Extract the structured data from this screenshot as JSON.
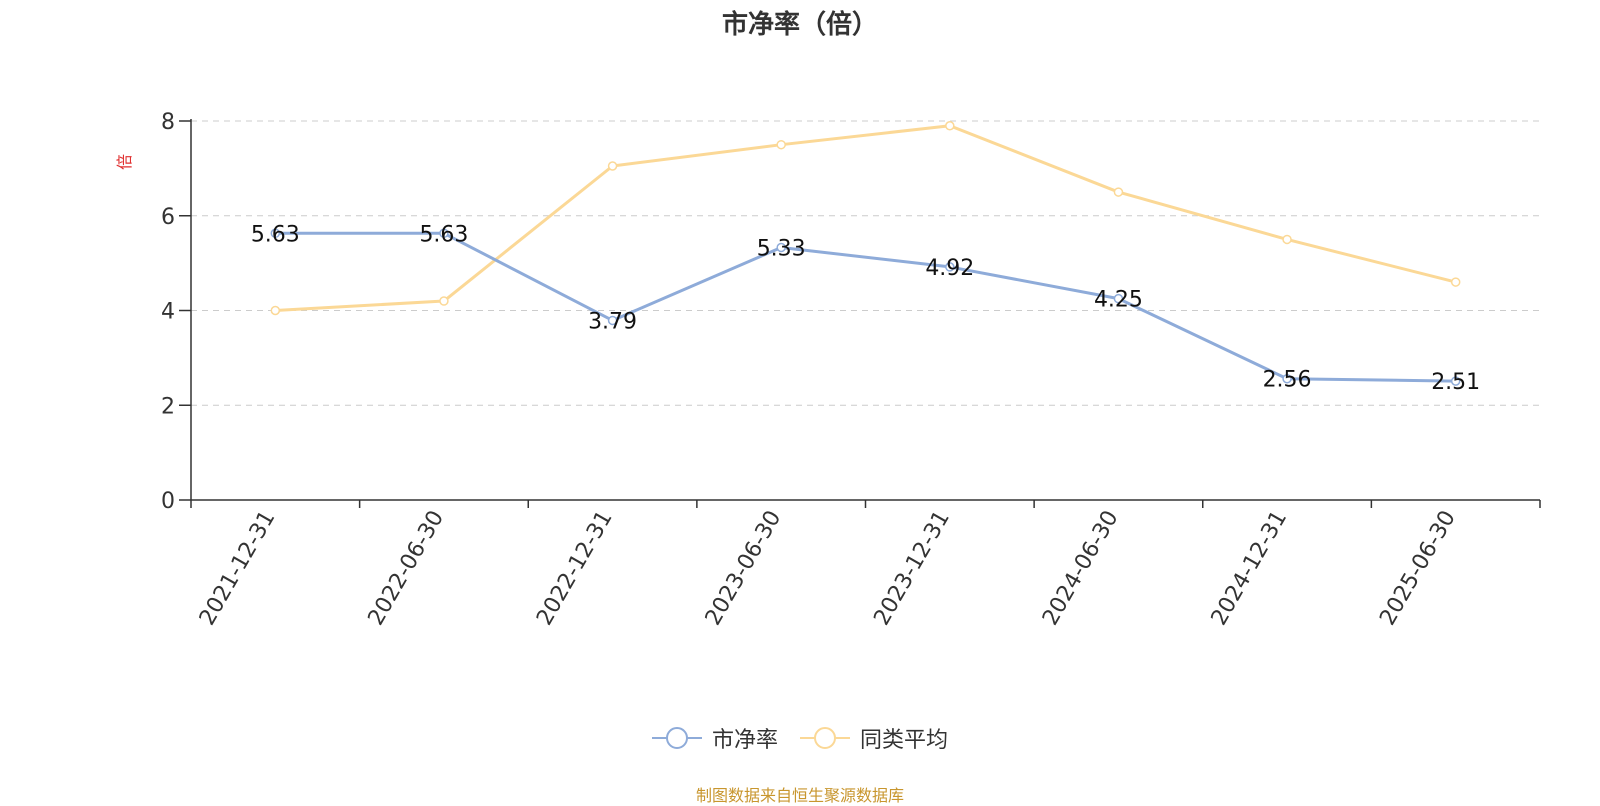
{
  "title": "市净率（倍）",
  "source_note": "制图数据来自恒生聚源数据库",
  "colors": {
    "series1": "#8eabd9",
    "series2": "#fbd896",
    "axis": "#333333",
    "grid": "#cccccc",
    "unit": "#e03030",
    "source": "#c8962e"
  },
  "chart_data": {
    "type": "line",
    "title": "市净率（倍）",
    "ylabel": "倍",
    "xlabel": "",
    "categories": [
      "2021-12-31",
      "2022-06-30",
      "2022-12-31",
      "2023-06-30",
      "2023-12-31",
      "2024-06-30",
      "2024-12-31",
      "2025-06-30"
    ],
    "series": [
      {
        "name": "市净率",
        "values": [
          5.63,
          5.63,
          3.79,
          5.33,
          4.92,
          4.25,
          2.56,
          2.51
        ],
        "labels": [
          "5.63",
          "5.63",
          "3.79",
          "5.33",
          "4.92",
          "4.25",
          "2.56",
          "2.51"
        ]
      },
      {
        "name": "同类平均",
        "values": [
          4.0,
          4.2,
          7.05,
          7.5,
          7.9,
          6.5,
          5.5,
          4.6
        ]
      }
    ],
    "ylim": [
      0,
      8
    ],
    "yticks": [
      "0",
      "2",
      "4",
      "6",
      "8"
    ],
    "grid": true,
    "legend_position": "bottom"
  }
}
